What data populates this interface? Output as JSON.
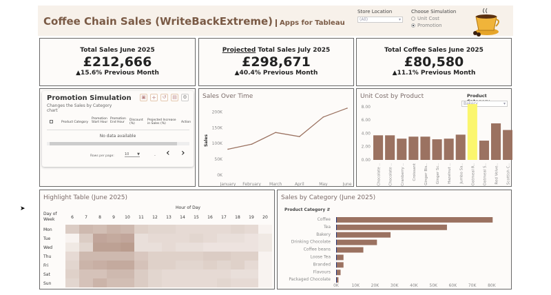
{
  "header": {
    "title": "Coffee Chain Sales (WriteBackExtreme)",
    "subtitle": "Apps for Tableau",
    "store_location_label": "Store Location",
    "store_location_value": "(All)",
    "simulation_label": "Choose Simulation",
    "simulation_options": [
      "Unit Cost",
      "Promotion"
    ],
    "simulation_selected": "Promotion"
  },
  "kpis": [
    {
      "title": "Total Sales June 2025",
      "value": "£212,666",
      "delta": "▲15.6% Previous Month"
    },
    {
      "title_prefix": "Projected",
      "title": " Total Sales July 2025",
      "value": "£298,671",
      "delta": "▲40.4% Previous Month"
    },
    {
      "title": "Total Coffee Sales June 2025",
      "value": "£80,580",
      "delta": "▲11.1% Previous Month"
    }
  ],
  "promo": {
    "title": "Promotion Simulation",
    "subtitle": "Changes the Sales by Category chart",
    "columns": [
      "Product Category",
      "Promotion Start Hour",
      "Promotion End Hour",
      "Discount (%)",
      "Projected Increase in Sales (%)",
      "Action"
    ],
    "empty": "No data available",
    "rows_per_page_label": "Rows per page:",
    "rows_per_page": "10",
    "page_info": "-"
  },
  "chart_data": [
    {
      "type": "line",
      "title": "Sales Over Time",
      "ylabel": "Sales",
      "categories": [
        "January",
        "February",
        "March",
        "April",
        "May",
        "June"
      ],
      "values": [
        82000,
        98000,
        135000,
        122000,
        184000,
        212000
      ],
      "ylim": [
        0,
        225000
      ],
      "yticks": [
        "0K",
        "50K",
        "100K",
        "150K",
        "200K"
      ]
    },
    {
      "type": "bar",
      "title": "Unit Cost by Product",
      "filter_label": "Product Category",
      "filter_value": "Bakery",
      "categories": [
        "Chocolate ..",
        "Chocolate ..",
        "Cranberry ..",
        "Croissant",
        "Ginger Bis..",
        "Ginger Sc..",
        "Hazelnut ..",
        "Jumbo Sa..",
        "Oatmeal R..",
        "Oatmeal S..",
        "Red Velve..",
        "Scottish C.."
      ],
      "values": [
        3.7,
        3.7,
        3.2,
        3.5,
        3.5,
        3.1,
        3.2,
        3.8,
        8.4,
        2.9,
        5.5,
        4.5
      ],
      "highlight_index": 8,
      "ylim": [
        0,
        8.4
      ],
      "yticks": [
        "0.00",
        "2.00",
        "4.00",
        "6.00",
        "8.00"
      ]
    },
    {
      "type": "heatmap",
      "title": "Highlight Table (June 2025)",
      "xlabel": "Hour of Day",
      "ylabel": "Day of Week",
      "x": [
        "6",
        "7",
        "8",
        "9",
        "10",
        "11",
        "12",
        "13",
        "14",
        "15",
        "16",
        "17",
        "18",
        "19",
        "20"
      ],
      "y": [
        "Mon",
        "Tue",
        "Wed",
        "Thu",
        "Fri",
        "Sat",
        "Sun"
      ],
      "values": [
        [
          0.35,
          0.55,
          0.5,
          0.6,
          0.55,
          0.3,
          0.25,
          0.25,
          0.2,
          0.2,
          0.2,
          0.2,
          0.25,
          0.2,
          0
        ],
        [
          0,
          0.35,
          0.75,
          0.7,
          0.75,
          0.15,
          0.2,
          0.2,
          0.2,
          0.25,
          0.2,
          0.15,
          0.15,
          0.1,
          0.05
        ],
        [
          0.05,
          0.25,
          0.8,
          0.8,
          0.85,
          0.15,
          0.15,
          0.2,
          0.15,
          0.15,
          0.1,
          0.1,
          0.1,
          0.1,
          0.05
        ],
        [
          0.2,
          0.55,
          0.55,
          0.55,
          0.55,
          0.4,
          0.3,
          0.3,
          0.3,
          0.3,
          0.35,
          0.35,
          0.3,
          0.3,
          0.02
        ],
        [
          0.25,
          0.6,
          0.65,
          0.7,
          0.7,
          0.45,
          0.3,
          0.3,
          0.25,
          0.25,
          0.3,
          0.25,
          0.3,
          0.2,
          0.02
        ],
        [
          0.3,
          0.45,
          0.45,
          0.55,
          0.55,
          0.35,
          0.25,
          0.2,
          0.2,
          0.2,
          0.2,
          0.2,
          0.15,
          0.15,
          0
        ],
        [
          0.25,
          0.45,
          0.6,
          0.5,
          0.5,
          0.35,
          0.25,
          0.2,
          0.2,
          0.2,
          0.2,
          0.25,
          0.2,
          0.2,
          0
        ]
      ]
    },
    {
      "type": "bar",
      "orientation": "horizontal",
      "title": "Sales by Category (June 2025)",
      "ylabel": "Product Category",
      "categories": [
        "Coffee",
        "Tea",
        "Bakery",
        "Drinking Chocolate",
        "Coffee beans",
        "Loose Tea",
        "Branded",
        "Flavours",
        "Packaged Chocolate"
      ],
      "values": [
        80500,
        57000,
        28000,
        21000,
        14000,
        3800,
        3800,
        2300,
        1200
      ],
      "xlim": [
        0,
        85000
      ],
      "xticks": [
        "0K",
        "10K",
        "20K",
        "30K",
        "40K",
        "50K",
        "60K",
        "70K",
        "80K"
      ]
    }
  ],
  "colors": {
    "bar": "#9b7261",
    "highlight": "#fbf66e",
    "line": "#9b7261",
    "header_bg": "#f7f1ea"
  }
}
